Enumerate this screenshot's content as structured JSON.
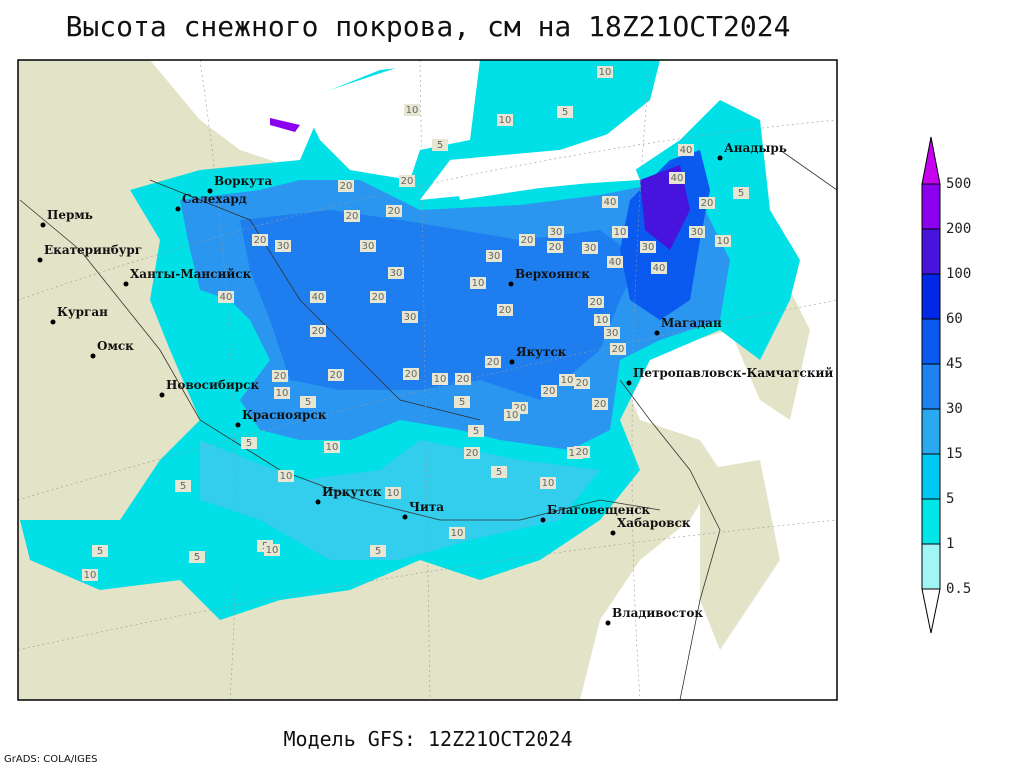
{
  "title": "Высота снежного покрова, см на 18Z21OCT2024",
  "footer": "Модель GFS: 12Z21OCT2024",
  "credit": "GrADS: COLA/IGES",
  "cities": [
    "Воркута",
    "Салехард",
    "Пермь",
    "Екатеринбург",
    "Ханты-Мансийск",
    "Курган",
    "Омск",
    "Новосибирск",
    "Красноярск",
    "Иркутск",
    "Чита",
    "Благовещенск",
    "Хабаровск",
    "Владивосток",
    "Верхоянск",
    "Якутск",
    "Магадан",
    "Петропавловск-Камчатский",
    "Анадырь"
  ],
  "legend": {
    "levels": [
      0.5,
      1,
      5,
      15,
      30,
      45,
      60,
      100,
      200,
      500
    ],
    "colors": [
      "#ffffff",
      "#a0f5f5",
      "#00e6e6",
      "#00c8f5",
      "#2aa8f0",
      "#1e82f0",
      "#0a5af0",
      "#0028e6",
      "#4614dc",
      "#8c00f0",
      "#c800f0"
    ]
  },
  "contour_labels": [
    10,
    10,
    10,
    5,
    5,
    20,
    20,
    20,
    20,
    20,
    30,
    30,
    30,
    40,
    20,
    40,
    20,
    30,
    10,
    30,
    20,
    20,
    30,
    30,
    10,
    30,
    40,
    40,
    40,
    40,
    40,
    20,
    30,
    10,
    5,
    20,
    20,
    10,
    30,
    20,
    20,
    20,
    10,
    20,
    20,
    20,
    10,
    20,
    20,
    10,
    20,
    20,
    10,
    5,
    5,
    10,
    5,
    5,
    5,
    10,
    10,
    20,
    20,
    10,
    10,
    5,
    5,
    10,
    5,
    10,
    5,
    5,
    10
  ]
}
